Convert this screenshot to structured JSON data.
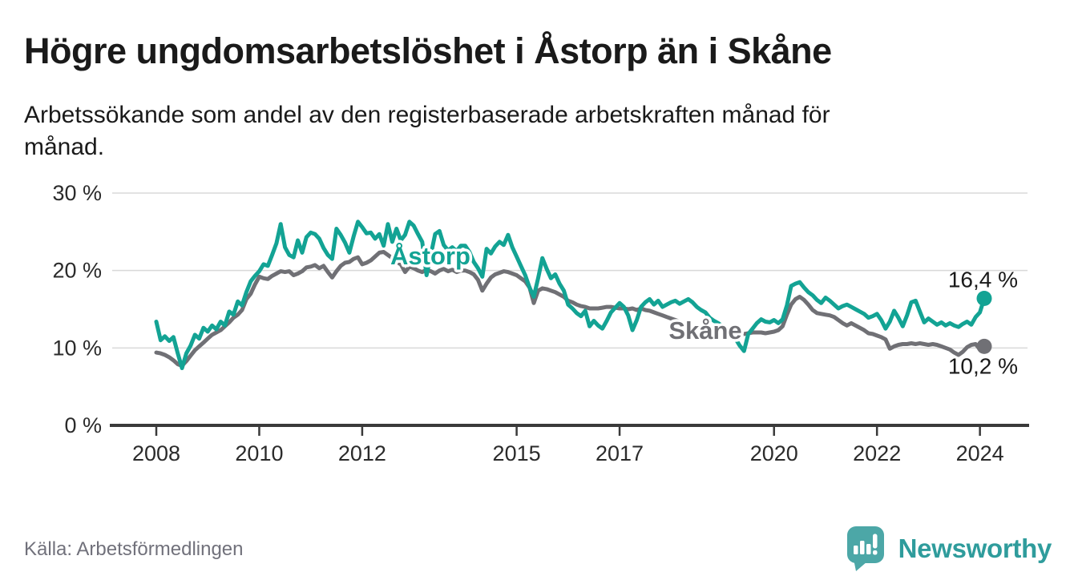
{
  "page": {
    "title": "Högre ungdomsarbetslöshet i Åstorp än i Skåne",
    "subtitle_line1": "Arbetssökande som andel av den registerbaserade arbetskraften månad för",
    "subtitle_line2": "månad.",
    "source": "Källa: Arbetsförmedlingen"
  },
  "logo": {
    "name": "Newsworthy",
    "icon": "speech-bubble-bar-chart-icon",
    "bubble_color": "#4CA7A7",
    "text_color": "#2F9C9C"
  },
  "colors": {
    "title_text": "#1a1a1a",
    "axis_text": "#2b2b2b",
    "grid": "#d9d9d9",
    "axis_line": "#3a3a3a",
    "source_text": "#71717b",
    "end_label_text": "#1a1a1a",
    "background": "#ffffff"
  },
  "chart_data": {
    "type": "line",
    "title": "Högre ungdomsarbetslöshet i Åstorp än i Skåne",
    "xlabel": "",
    "ylabel": "",
    "x_unit": "month",
    "x_start": "2008-01",
    "x_end": "2024-02",
    "ylim": [
      0,
      30
    ],
    "grid": "horizontal",
    "legend_position": "inline-labels",
    "y_ticks": [
      {
        "value": 30,
        "label": "30 %"
      },
      {
        "value": 20,
        "label": "20 %"
      },
      {
        "value": 10,
        "label": "10 %"
      },
      {
        "value": 0,
        "label": "0 %"
      }
    ],
    "x_ticks": [
      {
        "year": 2008,
        "label": "2008"
      },
      {
        "year": 2010,
        "label": "2010"
      },
      {
        "year": 2012,
        "label": "2012"
      },
      {
        "year": 2015,
        "label": "2015"
      },
      {
        "year": 2017,
        "label": "2017"
      },
      {
        "year": 2020,
        "label": "2020"
      },
      {
        "year": 2022,
        "label": "2022"
      },
      {
        "year": 2024,
        "label": "2024"
      }
    ],
    "series": [
      {
        "name": "Skåne",
        "color": "#707075",
        "end_value": 10.2,
        "end_label": "10,2 %",
        "values": [
          9.4,
          9.3,
          9.1,
          8.8,
          8.4,
          7.9,
          7.7,
          8.3,
          9.0,
          9.7,
          10.2,
          10.7,
          11.2,
          11.7,
          12.0,
          12.3,
          12.8,
          13.3,
          13.9,
          14.3,
          14.9,
          16.3,
          17.0,
          18.2,
          19.2,
          19.0,
          18.9,
          19.3,
          19.6,
          19.9,
          19.8,
          19.9,
          19.4,
          19.6,
          19.9,
          20.4,
          20.5,
          20.7,
          20.3,
          20.6,
          19.8,
          19.1,
          19.9,
          20.6,
          21.0,
          21.1,
          21.5,
          21.7,
          20.8,
          21.0,
          21.3,
          21.8,
          22.3,
          22.4,
          22.0,
          21.6,
          21.1,
          20.8,
          19.8,
          20.5,
          20.3,
          20.0,
          19.8,
          20.1,
          19.9,
          19.6,
          20.0,
          20.2,
          19.9,
          20.1,
          19.8,
          20.0,
          20.0,
          19.8,
          19.5,
          18.8,
          17.4,
          18.3,
          19.1,
          19.5,
          19.7,
          19.9,
          19.8,
          19.6,
          19.4,
          19.0,
          18.6,
          17.8,
          15.8,
          17.4,
          17.7,
          17.6,
          17.4,
          17.2,
          16.9,
          16.6,
          16.1,
          15.9,
          15.6,
          15.4,
          15.3,
          15.1,
          15.1,
          15.1,
          15.2,
          15.3,
          15.3,
          15.2,
          15.1,
          15.1,
          15.0,
          15.1,
          14.9,
          15.1,
          14.9,
          14.8,
          14.6,
          14.4,
          14.2,
          14.0,
          13.8,
          13.6,
          13.4,
          13.2,
          13.0,
          12.8,
          12.7,
          12.5,
          12.3,
          12.2,
          12.1,
          12.0,
          11.9,
          11.8,
          11.7,
          11.8,
          11.7,
          11.8,
          11.9,
          12.0,
          12.0,
          12.0,
          11.9,
          12.0,
          12.1,
          12.3,
          12.8,
          14.3,
          15.6,
          16.3,
          16.6,
          16.2,
          15.6,
          14.9,
          14.5,
          14.4,
          14.3,
          14.2,
          14.0,
          13.6,
          13.2,
          12.9,
          13.2,
          12.9,
          12.6,
          12.3,
          11.9,
          11.8,
          11.6,
          11.4,
          11.1,
          9.9,
          10.2,
          10.4,
          10.5,
          10.5,
          10.6,
          10.5,
          10.6,
          10.5,
          10.4,
          10.5,
          10.4,
          10.2,
          10.0,
          9.8,
          9.4,
          9.1,
          9.5,
          10.1,
          10.4,
          10.5,
          9.8,
          10.2
        ]
      },
      {
        "name": "Åstorp",
        "color": "#13A394",
        "end_value": 16.4,
        "end_label": "16,4 %",
        "values": [
          13.4,
          11.0,
          11.5,
          10.9,
          11.4,
          9.3,
          7.4,
          9.3,
          10.3,
          11.7,
          11.2,
          12.6,
          12.1,
          12.9,
          12.4,
          13.4,
          12.9,
          14.7,
          14.3,
          16.0,
          15.5,
          17.2,
          18.6,
          19.3,
          19.9,
          20.8,
          20.6,
          22.0,
          23.5,
          26.0,
          23.0,
          22.0,
          21.7,
          23.9,
          22.3,
          24.3,
          24.9,
          24.7,
          24.1,
          22.9,
          22.0,
          21.5,
          25.4,
          24.6,
          23.6,
          22.3,
          24.4,
          26.3,
          25.6,
          24.8,
          24.9,
          24.1,
          24.7,
          23.2,
          26.0,
          23.7,
          25.4,
          23.9,
          24.6,
          26.3,
          25.8,
          24.7,
          23.7,
          19.4,
          22.0,
          24.7,
          25.1,
          23.3,
          22.6,
          23.0,
          22.5,
          23.2,
          23.2,
          22.4,
          21.1,
          20.3,
          19.2,
          22.8,
          22.2,
          23.1,
          23.7,
          23.3,
          24.6,
          23.0,
          21.8,
          20.6,
          19.4,
          17.8,
          16.6,
          19.0,
          21.6,
          20.2,
          19.0,
          19.5,
          18.3,
          17.4,
          15.6,
          15.1,
          14.5,
          14.1,
          14.8,
          12.8,
          13.5,
          12.9,
          12.5,
          13.5,
          14.6,
          15.2,
          15.8,
          15.3,
          14.2,
          12.3,
          13.6,
          15.3,
          15.9,
          16.3,
          15.6,
          16.1,
          15.3,
          15.6,
          15.9,
          16.1,
          15.7,
          16.0,
          16.3,
          15.9,
          15.3,
          14.9,
          14.6,
          13.9,
          13.5,
          13.2,
          12.8,
          12.2,
          11.6,
          11.2,
          10.3,
          9.6,
          11.8,
          12.5,
          13.2,
          13.7,
          13.4,
          13.3,
          13.6,
          13.2,
          13.7,
          15.5,
          18.0,
          18.3,
          18.5,
          17.8,
          17.2,
          16.8,
          16.2,
          15.8,
          16.5,
          16.1,
          15.6,
          15.1,
          15.4,
          15.6,
          15.3,
          15.0,
          14.7,
          14.4,
          13.9,
          14.1,
          14.4,
          13.6,
          12.5,
          13.4,
          14.8,
          13.9,
          12.8,
          14.2,
          15.9,
          16.1,
          14.7,
          13.3,
          13.8,
          13.4,
          13.0,
          13.3,
          12.9,
          13.2,
          12.9,
          12.7,
          13.1,
          13.4,
          13.0,
          14.0,
          14.6,
          16.4
        ]
      }
    ]
  }
}
